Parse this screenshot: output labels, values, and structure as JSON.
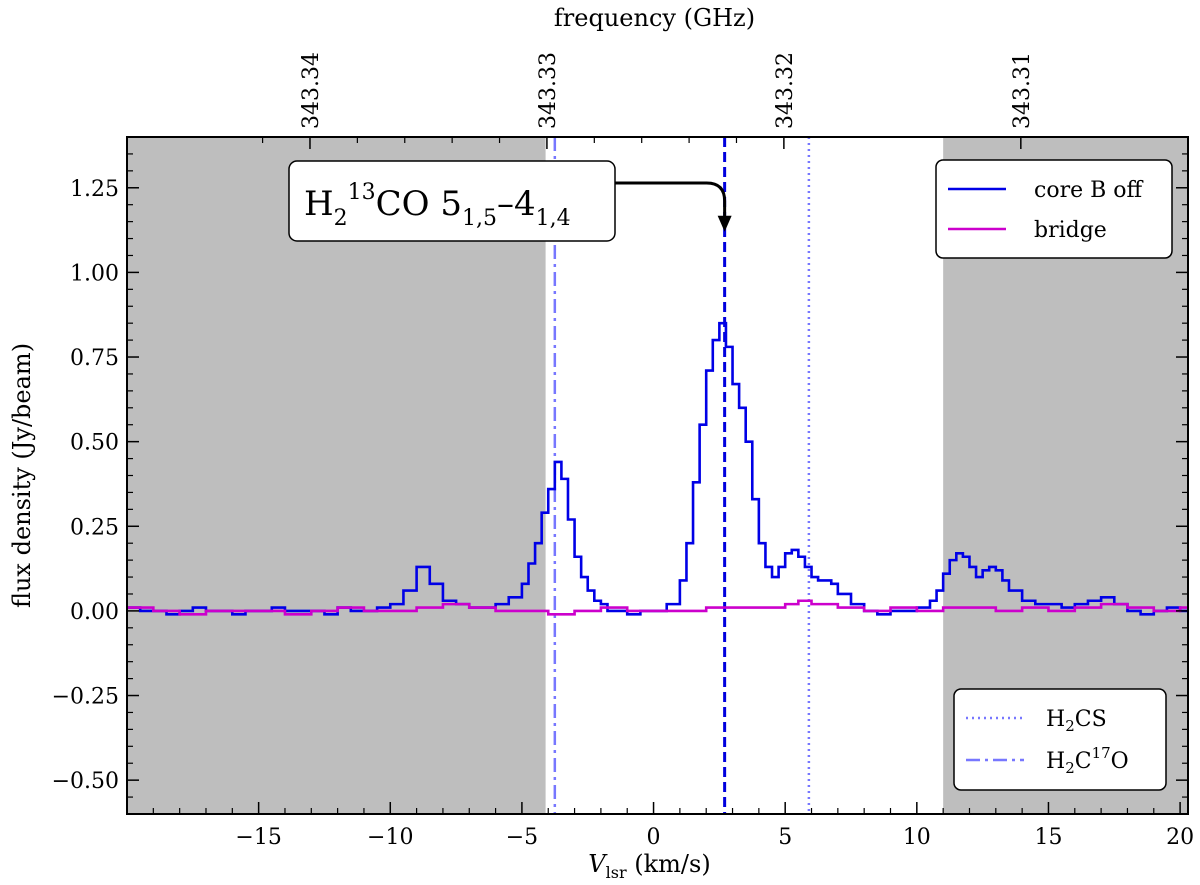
{
  "chart_data": {
    "type": "line",
    "xlabel": "V",
    "xlabel_sub": "lsr",
    "xlabel_unit": " (km/s)",
    "ylabel": "flux density (Jy/beam)",
    "top_axis_label": "frequency (GHz)",
    "xlim": [
      -20,
      20.3
    ],
    "ylim": [
      -0.6,
      1.4
    ],
    "x_ticks": [
      -15,
      -10,
      -5,
      0,
      5,
      10,
      15,
      20
    ],
    "x_tick_labels": [
      "−15",
      "−10",
      "−5",
      "0",
      "5",
      "10",
      "15",
      "20"
    ],
    "y_ticks": [
      -0.5,
      -0.25,
      0.0,
      0.25,
      0.5,
      0.75,
      1.0,
      1.25
    ],
    "y_tick_labels": [
      "−0.50",
      "−0.25",
      "0.00",
      "0.25",
      "0.50",
      "0.75",
      "1.00",
      "1.25"
    ],
    "top_ticks": [
      {
        "velocity": -13.05,
        "label": "343.34"
      },
      {
        "velocity": -4.05,
        "label": "343.33"
      },
      {
        "velocity": 4.95,
        "label": "343.32"
      },
      {
        "velocity": 13.95,
        "label": "343.31"
      }
    ],
    "shaded_regions": [
      {
        "x": [
          -20,
          -4.1
        ],
        "color": "#bebebe"
      },
      {
        "x": [
          11.0,
          20.3
        ],
        "color": "#bebebe"
      }
    ],
    "vertical_lines": [
      {
        "name": "H2 13CO 5(1,5)-4(1,4)",
        "x": 2.7,
        "style": "dashed",
        "color": "#0000dd"
      },
      {
        "name": "H2CS",
        "x": 5.9,
        "style": "dotted",
        "color": "#7777ff"
      },
      {
        "name": "H2C17O",
        "x": -3.75,
        "style": "dashdot",
        "color": "#7777ff"
      }
    ],
    "annotation": {
      "main": "H",
      "sub1": "2",
      "sup1": "13",
      "mid": "CO 5",
      "sub2": "1,5",
      "dash": "–4",
      "sub3": "1,4",
      "arrow_to": {
        "x": 2.7,
        "y": 1.12
      }
    },
    "series": [
      {
        "name": "core B off",
        "color": "#0000e6",
        "step": true,
        "x": [
          -20.0,
          -19.5,
          -19.0,
          -18.5,
          -18.0,
          -17.5,
          -17.0,
          -16.5,
          -16.0,
          -15.5,
          -15.0,
          -14.5,
          -14.0,
          -13.5,
          -13.0,
          -12.5,
          -12.0,
          -11.5,
          -11.0,
          -10.5,
          -10.0,
          -9.5,
          -9.0,
          -8.5,
          -8.0,
          -7.5,
          -7.0,
          -6.5,
          -6.0,
          -5.5,
          -5.0,
          -4.75,
          -4.5,
          -4.25,
          -4.0,
          -3.75,
          -3.5,
          -3.25,
          -3.0,
          -2.75,
          -2.5,
          -2.25,
          -2.0,
          -1.75,
          -1.5,
          -1.25,
          -1.0,
          -0.5,
          0.0,
          0.5,
          1.0,
          1.25,
          1.5,
          1.75,
          2.0,
          2.25,
          2.5,
          2.75,
          3.0,
          3.25,
          3.5,
          3.75,
          4.0,
          4.25,
          4.5,
          4.75,
          5.0,
          5.25,
          5.5,
          5.75,
          6.0,
          6.25,
          6.5,
          6.75,
          7.0,
          7.5,
          8.0,
          8.5,
          9.0,
          9.5,
          10.0,
          10.5,
          10.75,
          11.0,
          11.25,
          11.5,
          11.75,
          12.0,
          12.25,
          12.5,
          12.75,
          13.0,
          13.25,
          13.5,
          14.0,
          14.5,
          15.0,
          15.5,
          16.0,
          16.5,
          17.0,
          17.5,
          18.0,
          18.5,
          19.0,
          19.5,
          20.0
        ],
        "y": [
          0.01,
          0.0,
          0.0,
          -0.01,
          0.0,
          0.01,
          0.0,
          0.0,
          -0.01,
          0.0,
          0.0,
          0.01,
          0.0,
          0.0,
          0.0,
          -0.01,
          0.01,
          0.0,
          0.0,
          0.01,
          0.02,
          0.06,
          0.13,
          0.08,
          0.03,
          0.02,
          0.01,
          0.01,
          0.02,
          0.04,
          0.08,
          0.14,
          0.2,
          0.29,
          0.36,
          0.44,
          0.39,
          0.27,
          0.16,
          0.1,
          0.06,
          0.03,
          0.02,
          0.0,
          0.0,
          0.0,
          -0.01,
          0.0,
          0.0,
          0.02,
          0.09,
          0.2,
          0.38,
          0.55,
          0.71,
          0.8,
          0.85,
          0.78,
          0.67,
          0.6,
          0.5,
          0.33,
          0.2,
          0.13,
          0.1,
          0.13,
          0.17,
          0.18,
          0.16,
          0.13,
          0.1,
          0.09,
          0.09,
          0.08,
          0.05,
          0.02,
          0.0,
          -0.01,
          0.0,
          0.0,
          0.01,
          0.03,
          0.06,
          0.11,
          0.15,
          0.17,
          0.16,
          0.13,
          0.1,
          0.12,
          0.13,
          0.12,
          0.09,
          0.06,
          0.03,
          0.02,
          0.02,
          0.01,
          0.02,
          0.03,
          0.04,
          0.02,
          0.0,
          -0.01,
          0.0,
          0.01,
          0.0
        ]
      },
      {
        "name": "bridge",
        "color": "#cc00cc",
        "step": true,
        "x": [
          -20.0,
          -19.0,
          -18.0,
          -17.0,
          -16.0,
          -15.0,
          -14.0,
          -13.0,
          -12.0,
          -11.0,
          -10.0,
          -9.0,
          -8.0,
          -7.0,
          -6.0,
          -5.0,
          -4.0,
          -3.0,
          -2.0,
          -1.0,
          0.0,
          1.0,
          2.0,
          3.0,
          4.0,
          5.0,
          5.5,
          6.0,
          7.0,
          8.0,
          9.0,
          10.0,
          11.0,
          12.0,
          13.0,
          14.0,
          15.0,
          16.0,
          17.0,
          18.0,
          19.0,
          20.0
        ],
        "y": [
          0.01,
          0.0,
          -0.01,
          0.0,
          0.0,
          0.0,
          -0.01,
          0.0,
          0.01,
          0.0,
          0.0,
          0.01,
          0.02,
          0.01,
          0.0,
          0.0,
          -0.01,
          0.0,
          0.01,
          0.0,
          0.0,
          0.0,
          0.01,
          0.01,
          0.01,
          0.02,
          0.03,
          0.02,
          0.01,
          0.0,
          0.01,
          0.0,
          0.01,
          0.01,
          0.0,
          0.01,
          0.0,
          0.01,
          0.02,
          0.01,
          0.0,
          0.01
        ]
      }
    ],
    "legend_upper": [
      {
        "label": "core B off",
        "color": "#0000e6",
        "style": "solid"
      },
      {
        "label": "bridge",
        "color": "#cc00cc",
        "style": "solid"
      }
    ],
    "legend_lower": [
      {
        "label": "H",
        "sub": "2",
        "rest": "CS",
        "sup": "",
        "tail": "",
        "color": "#7777ff",
        "style": "dotted"
      },
      {
        "label": "H",
        "sub": "2",
        "rest": "C",
        "sup": "17",
        "tail": "O",
        "color": "#7777ff",
        "style": "dashdot"
      }
    ],
    "legend_upper_position": "top-right",
    "legend_lower_position": "bottom-right",
    "grid": false
  }
}
